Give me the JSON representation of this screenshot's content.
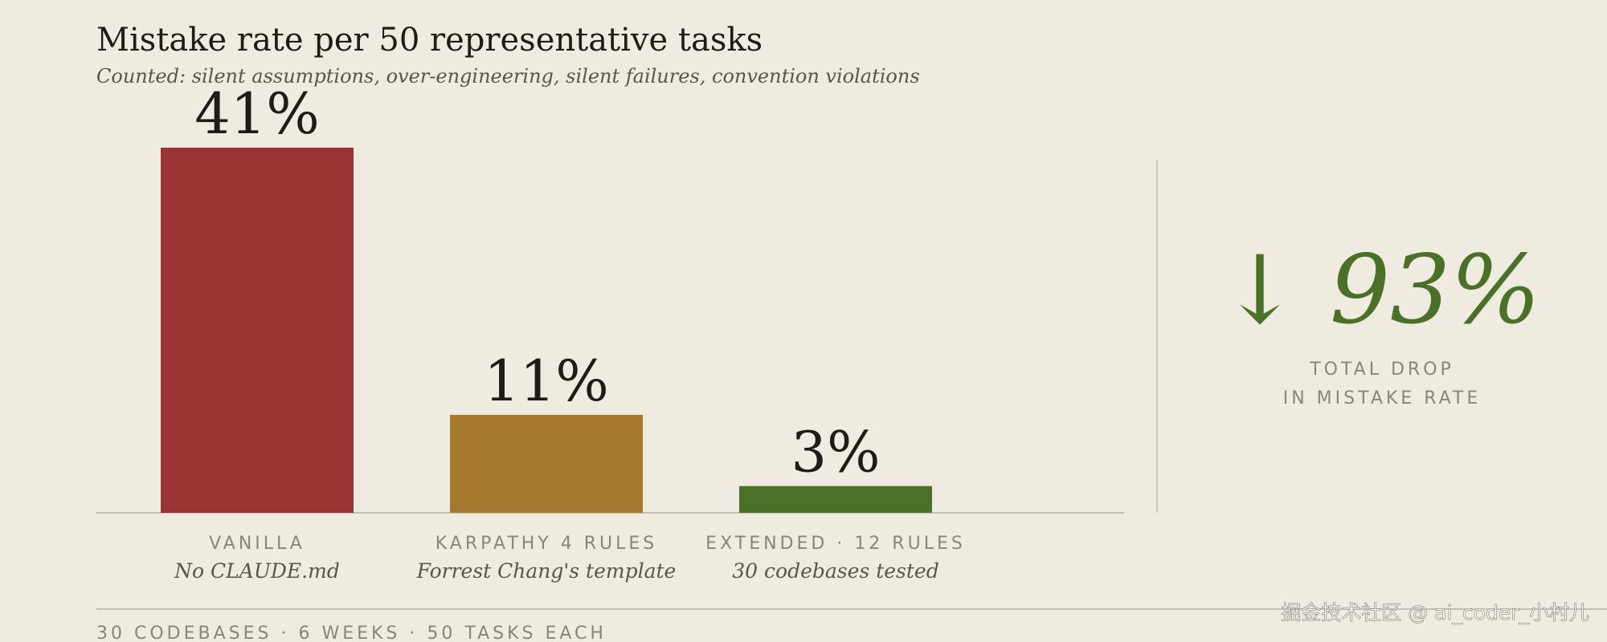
{
  "chart_data": {
    "type": "bar",
    "title": "Mistake rate per 50 representative tasks",
    "subtitle": "Counted: silent assumptions, over-engineering, silent failures, convention violations",
    "categories": [
      "VANILLA",
      "KARPATHY 4 RULES",
      "EXTENDED · 12 RULES"
    ],
    "sublabels": [
      "No CLAUDE.md",
      "Forrest Chang's template",
      "30 codebases tested"
    ],
    "values": [
      41,
      11,
      3
    ],
    "value_labels": [
      "41%",
      "11%",
      "3%"
    ],
    "colors": [
      "#993535",
      "#a7792e",
      "#4a7127"
    ],
    "callout": "↓ 93%",
    "callout_color": "#4a7127",
    "callout_caption": [
      "TOTAL DROP",
      "IN MISTAKE RATE"
    ]
  },
  "footer": "30 CODEBASES · 6 WEEKS · 50 TASKS EACH",
  "watermark": "掘金技术社区 @ ai_coder_小村儿"
}
